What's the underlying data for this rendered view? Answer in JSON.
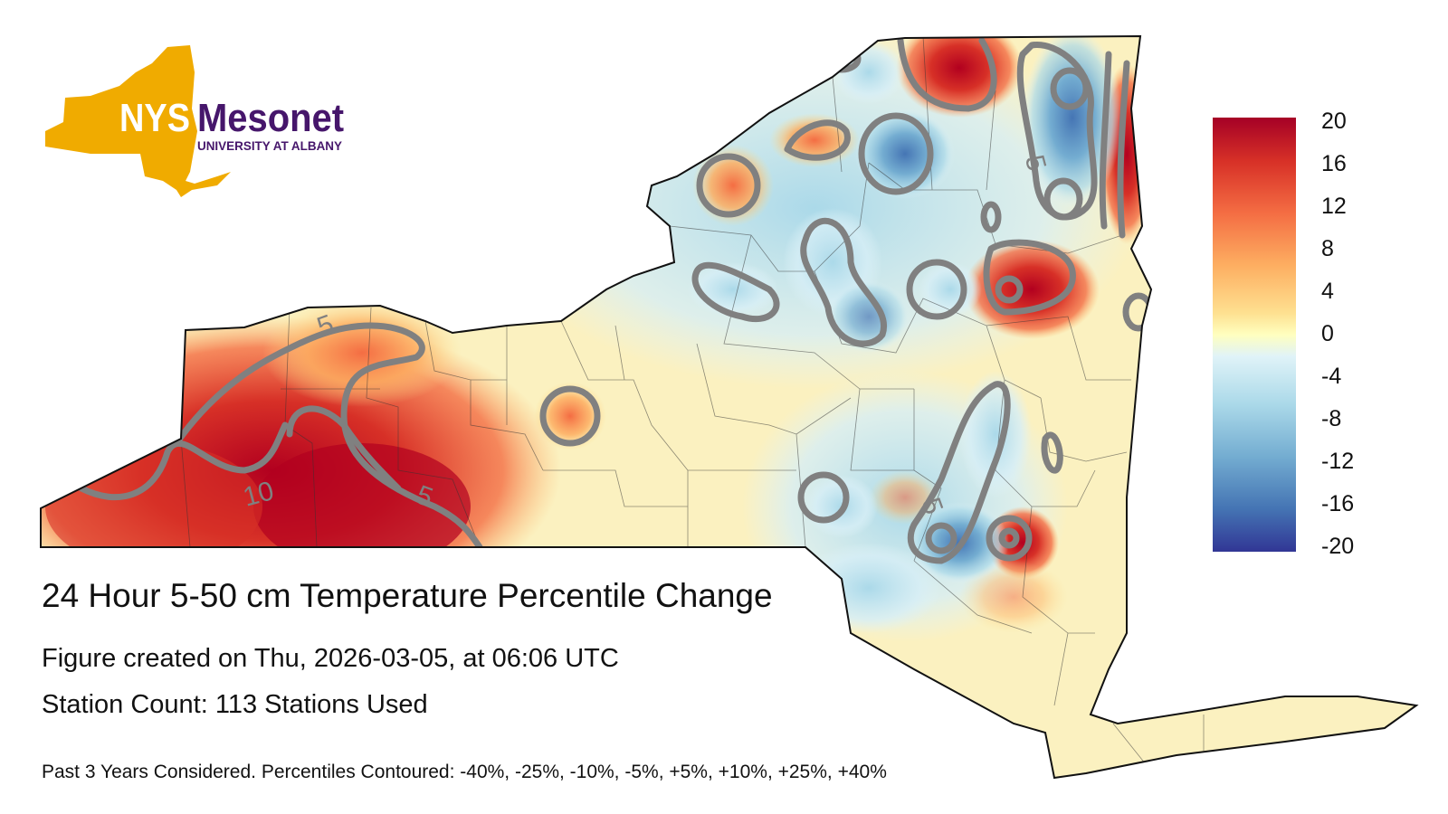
{
  "logo": {
    "brand_nys": "NYS",
    "brand_mesonet": "Mesonet",
    "brand_sub": "UNIVERSITY AT ALBANY"
  },
  "colors": {
    "logo_gold": "#f0ab00",
    "logo_purple": "#46166b",
    "contour_gray": "#808080",
    "state_border": "#111111"
  },
  "map": {
    "title": "24 Hour 5-50 cm Temperature Percentile Change",
    "created": "Figure created on Thu, 2026-03-05, at 06:06 UTC",
    "station_count": "Station Count: 113 Stations Used",
    "footnote": "Past 3 Years Considered. Percentiles Contoured: -40%, -25%, -10%, -5%, +5%, +10%, +25%, +40%",
    "contour_labels": [
      "5",
      "10",
      "5",
      "-5",
      "5"
    ]
  },
  "colorbar": {
    "ticks": [
      "20",
      "16",
      "12",
      "8",
      "4",
      "0",
      "-4",
      "-8",
      "-12",
      "-16",
      "-20"
    ],
    "min": -20,
    "max": 20
  }
}
